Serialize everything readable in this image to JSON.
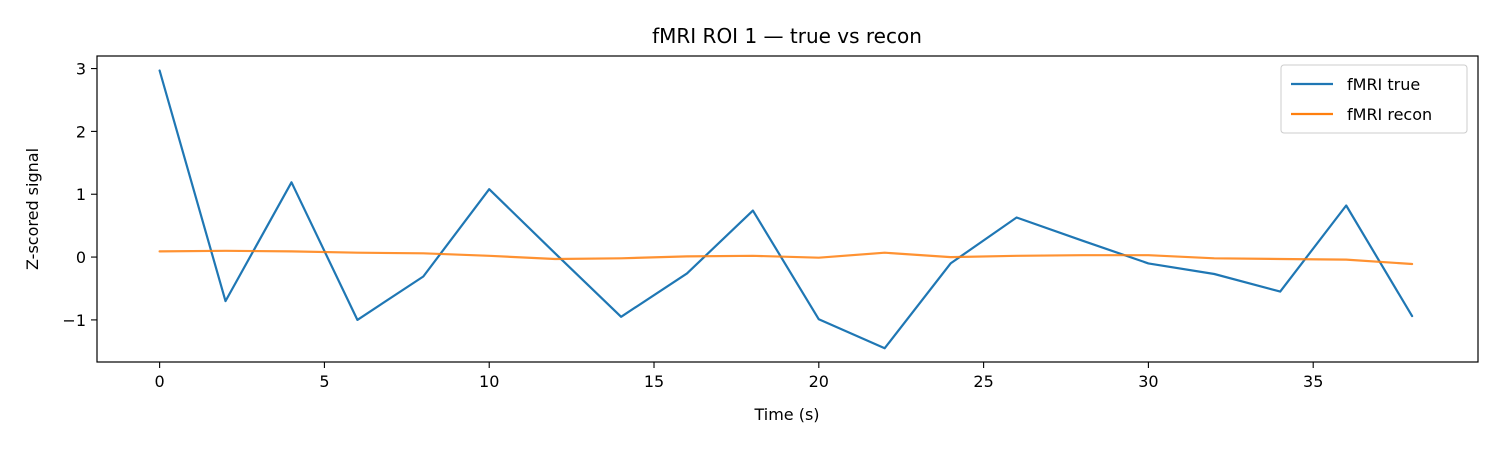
{
  "chart_data": {
    "type": "line",
    "title": "fMRI ROI 1 — true vs recon",
    "xlabel": "Time (s)",
    "ylabel": "Z-scored signal",
    "xlim": [
      -1.9,
      40.0
    ],
    "ylim": [
      -1.67,
      3.2
    ],
    "xticks": [
      0,
      5,
      10,
      15,
      20,
      25,
      30,
      35
    ],
    "yticks": [
      3,
      2,
      1,
      0,
      -1
    ],
    "ytick_labels": [
      "3",
      "2",
      "1",
      "0",
      "−1"
    ],
    "grid": false,
    "legend_position": "top-right",
    "x": [
      0,
      2,
      4,
      6,
      8,
      10,
      12,
      14,
      16,
      18,
      20,
      22,
      24,
      26,
      28,
      30,
      32,
      34,
      36,
      38
    ],
    "series": [
      {
        "name": "fMRI true",
        "color": "#1f77b4",
        "values": [
          2.97,
          -0.7,
          1.19,
          -1.0,
          -0.31,
          1.08,
          0.06,
          -0.95,
          -0.26,
          0.74,
          -0.99,
          -1.45,
          -0.1,
          0.63,
          0.26,
          -0.1,
          -0.27,
          -0.55,
          0.82,
          -0.94
        ]
      },
      {
        "name": "fMRI recon",
        "color": "#ff7f0e",
        "values": [
          0.09,
          0.1,
          0.09,
          0.07,
          0.06,
          0.02,
          -0.03,
          -0.02,
          0.01,
          0.02,
          -0.01,
          0.07,
          0.0,
          0.02,
          0.03,
          0.03,
          -0.02,
          -0.03,
          -0.04,
          -0.11
        ]
      }
    ]
  }
}
